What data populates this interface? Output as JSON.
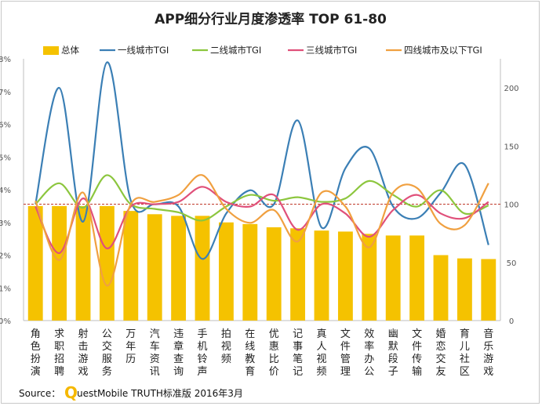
{
  "chart_data": {
    "type": "bar",
    "title": "APP细分行业月度渗透率 TOP 61-80",
    "categories": [
      "角色扮演",
      "求职招聘",
      "射击游戏",
      "公交服务",
      "万年历",
      "汽车资讯",
      "违章查询",
      "手机铃声",
      "拍视频",
      "在线教育",
      "优惠比价",
      "记事笔记",
      "真人视频",
      "文件管理",
      "效率办公",
      "幽默段子",
      "文件传输",
      "婚恋交友",
      "育儿社区",
      "音乐游戏"
    ],
    "y_left": {
      "ticks": [
        "0%",
        "1%",
        "2%",
        "3%",
        "4%",
        "5%",
        "6%",
        "7%",
        "8%"
      ],
      "ylim": [
        0,
        8
      ],
      "unit": "%"
    },
    "y_right": {
      "ticks": [
        "0",
        "50",
        "100",
        "150",
        "200"
      ],
      "ylim": [
        0,
        225
      ],
      "reference": 100
    },
    "grid": false,
    "legend_position": "top",
    "series": [
      {
        "name": "总体",
        "type": "bar",
        "axis": "left",
        "color": "#f5c200",
        "values": [
          3.5,
          3.5,
          3.5,
          3.5,
          3.35,
          3.25,
          3.2,
          3.2,
          3.0,
          2.95,
          2.85,
          2.82,
          2.75,
          2.72,
          2.65,
          2.6,
          2.6,
          2.0,
          1.9,
          1.88
        ]
      },
      {
        "name": "一线城市TGI",
        "type": "line",
        "axis": "right",
        "color": "#3b7fb5",
        "values": [
          100,
          200,
          85,
          222,
          103,
          100,
          98,
          53,
          92,
          112,
          100,
          172,
          80,
          131,
          148,
          98,
          88,
          110,
          134,
          65
        ]
      },
      {
        "name": "二线城市TGI",
        "type": "line",
        "axis": "right",
        "color": "#8cc63e",
        "values": [
          100,
          118,
          97,
          125,
          100,
          96,
          93,
          86,
          98,
          108,
          103,
          106,
          102,
          105,
          120,
          108,
          98,
          112,
          92,
          99
        ]
      },
      {
        "name": "三线城市TGI",
        "type": "line",
        "axis": "right",
        "color": "#e0507a",
        "values": [
          98,
          58,
          105,
          62,
          98,
          100,
          102,
          115,
          102,
          98,
          108,
          78,
          100,
          92,
          72,
          95,
          108,
          92,
          88,
          102
        ]
      },
      {
        "name": "四线城市及以下TGI",
        "type": "line",
        "axis": "right",
        "color": "#f0a040",
        "values": [
          103,
          52,
          110,
          30,
          100,
          102,
          108,
          125,
          96,
          84,
          95,
          68,
          110,
          98,
          63,
          110,
          114,
          83,
          82,
          118
        ]
      }
    ]
  },
  "source": {
    "label": "Source：",
    "logo_letter": "Q",
    "text": "uestMobile TRUTH标准版 2016年3月"
  }
}
